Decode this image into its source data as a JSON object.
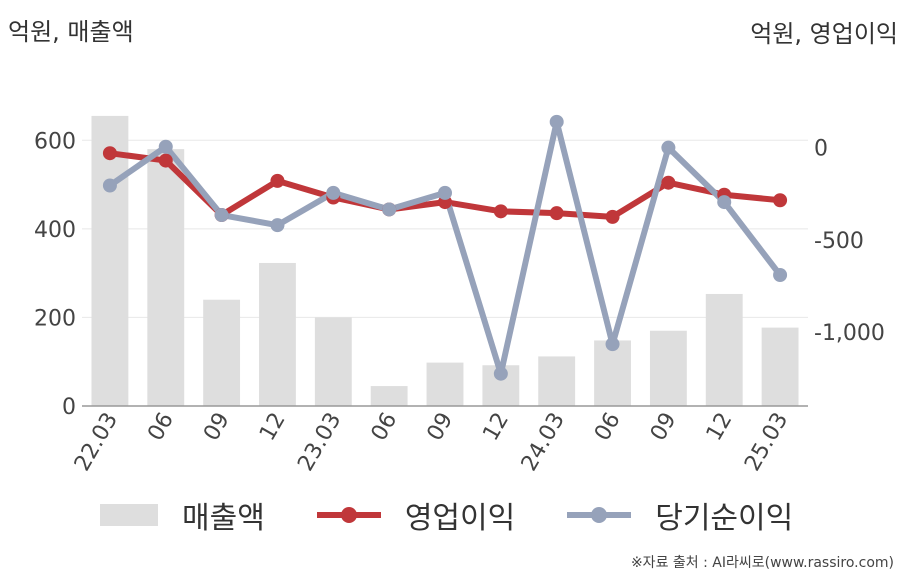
{
  "chart_data": {
    "type": "bar+line",
    "left_unit": "억원, 매출액",
    "right_unit": "억원, 영업이익",
    "categories": [
      "22.03",
      "06",
      "09",
      "12",
      "23.03",
      "06",
      "09",
      "12",
      "24.03",
      "06",
      "09",
      "12",
      "25.03"
    ],
    "left_axis": {
      "ticks": [
        0,
        200,
        400,
        600
      ],
      "tick_labels": [
        "0",
        "200",
        "400",
        "600"
      ],
      "range": [
        0,
        700
      ]
    },
    "right_axis": {
      "ticks": [
        0,
        -500,
        -1000
      ],
      "tick_labels": [
        "0",
        "-500",
        "-1,000"
      ],
      "range": [
        -1400,
        280
      ]
    },
    "series": [
      {
        "name": "매출액",
        "type": "bar",
        "axis": "left",
        "color": "#dedede",
        "values": [
          655,
          580,
          240,
          323,
          200,
          45,
          98,
          92,
          112,
          148,
          170,
          253,
          177
        ]
      },
      {
        "name": "영업이익",
        "type": "line",
        "axis": "right",
        "color": "#c0373a",
        "values": [
          -30,
          -70,
          -365,
          -180,
          -270,
          -335,
          -295,
          -345,
          -355,
          -375,
          -190,
          -255,
          -285
        ]
      },
      {
        "name": "당기순이익",
        "type": "line",
        "axis": "right",
        "color": "#96a2ba",
        "values": [
          -205,
          5,
          -365,
          -420,
          -245,
          -335,
          -245,
          -1225,
          140,
          -1065,
          0,
          -295,
          -690
        ]
      }
    ],
    "grid": true,
    "legend_position": "bottom"
  },
  "legend": [
    {
      "label": "매출액"
    },
    {
      "label": "영업이익"
    },
    {
      "label": "당기순이익"
    }
  ],
  "source": "※자료 출처 : AI라씨로(www.rassiro.com)"
}
